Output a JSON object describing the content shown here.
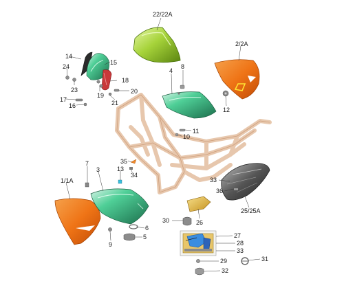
{
  "diagram": {
    "callouts": [
      {
        "id": "c1",
        "text": "22/22A"
      },
      {
        "id": "c2",
        "text": "14"
      },
      {
        "id": "c3",
        "text": "15"
      },
      {
        "id": "c4",
        "text": "24"
      },
      {
        "id": "c5",
        "text": "18"
      },
      {
        "id": "c6",
        "text": "23"
      },
      {
        "id": "c7",
        "text": "19"
      },
      {
        "id": "c8",
        "text": "20"
      },
      {
        "id": "c9",
        "text": "17"
      },
      {
        "id": "c10",
        "text": "16"
      },
      {
        "id": "c11",
        "text": "21"
      },
      {
        "id": "c12",
        "text": "4"
      },
      {
        "id": "c13",
        "text": "8"
      },
      {
        "id": "c14",
        "text": "2/2A"
      },
      {
        "id": "c15",
        "text": "12"
      },
      {
        "id": "c16",
        "text": "11"
      },
      {
        "id": "c17",
        "text": "10"
      },
      {
        "id": "c18",
        "text": "35"
      },
      {
        "id": "c19",
        "text": "34"
      },
      {
        "id": "c20",
        "text": "7"
      },
      {
        "id": "c21",
        "text": "3"
      },
      {
        "id": "c22",
        "text": "13"
      },
      {
        "id": "c23",
        "text": "1/1A"
      },
      {
        "id": "c24",
        "text": "33"
      },
      {
        "id": "c25",
        "text": "36"
      },
      {
        "id": "c26",
        "text": "25/25A"
      },
      {
        "id": "c27",
        "text": "26"
      },
      {
        "id": "c28",
        "text": "30"
      },
      {
        "id": "c29",
        "text": "6"
      },
      {
        "id": "c30",
        "text": "5"
      },
      {
        "id": "c31",
        "text": "9"
      },
      {
        "id": "c32",
        "text": "27"
      },
      {
        "id": "c33",
        "text": "28"
      },
      {
        "id": "c34",
        "text": "33"
      },
      {
        "id": "c35",
        "text": "29"
      },
      {
        "id": "c36",
        "text": "31"
      },
      {
        "id": "c37",
        "text": "32"
      }
    ],
    "colors": {
      "frame": "#e8c7a8",
      "frame_stroke": "#d2a584",
      "orange": "#f07a1c",
      "orange_dark": "#c9520a",
      "green": "#3fbf8a",
      "green_dark": "#1f7a55",
      "lime": "#a8d63a",
      "lime_dark": "#5f8c12",
      "grey": "#8a8a8a",
      "dark": "#3a3a3a",
      "gold": "#e2b23f"
    }
  }
}
